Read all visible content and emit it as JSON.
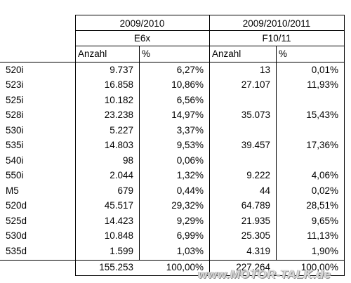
{
  "header": {
    "period_1": "2009/2010",
    "period_2": "2009/2010/2011",
    "model_1": "E6x",
    "model_2": "F10/11"
  },
  "columns": [
    "Anzahl",
    "%",
    "Anzahl",
    "%"
  ],
  "rows": [
    {
      "model": "520i",
      "e6x_count": "9.737",
      "e6x_pct": "6,27%",
      "f10_count": "13",
      "f10_pct": "0,01%"
    },
    {
      "model": "523i",
      "e6x_count": "16.858",
      "e6x_pct": "10,86%",
      "f10_count": "27.107",
      "f10_pct": "11,93%"
    },
    {
      "model": "525i",
      "e6x_count": "10.182",
      "e6x_pct": "6,56%",
      "f10_count": "",
      "f10_pct": ""
    },
    {
      "model": "528i",
      "e6x_count": "23.238",
      "e6x_pct": "14,97%",
      "f10_count": "35.073",
      "f10_pct": "15,43%"
    },
    {
      "model": "530i",
      "e6x_count": "5.227",
      "e6x_pct": "3,37%",
      "f10_count": "",
      "f10_pct": ""
    },
    {
      "model": "535i",
      "e6x_count": "14.803",
      "e6x_pct": "9,53%",
      "f10_count": "39.457",
      "f10_pct": "17,36%"
    },
    {
      "model": "540i",
      "e6x_count": "98",
      "e6x_pct": "0,06%",
      "f10_count": "",
      "f10_pct": ""
    },
    {
      "model": "550i",
      "e6x_count": "2.044",
      "e6x_pct": "1,32%",
      "f10_count": "9.222",
      "f10_pct": "4,06%"
    },
    {
      "model": "M5",
      "e6x_count": "679",
      "e6x_pct": "0,44%",
      "f10_count": "44",
      "f10_pct": "0,02%"
    },
    {
      "model": "520d",
      "e6x_count": "45.517",
      "e6x_pct": "29,32%",
      "f10_count": "64.789",
      "f10_pct": "28,51%"
    },
    {
      "model": "525d",
      "e6x_count": "14.423",
      "e6x_pct": "9,29%",
      "f10_count": "21.935",
      "f10_pct": "9,65%"
    },
    {
      "model": "530d",
      "e6x_count": "10.848",
      "e6x_pct": "6,99%",
      "f10_count": "25.305",
      "f10_pct": "11,13%"
    },
    {
      "model": "535d",
      "e6x_count": "1.599",
      "e6x_pct": "1,03%",
      "f10_count": "4.319",
      "f10_pct": "1,90%"
    }
  ],
  "totals": {
    "e6x_count": "155.253",
    "e6x_pct": "100,00%",
    "f10_count": "227.264",
    "f10_pct": "100,00%"
  },
  "watermark": "www.MOTOR-TALK.de"
}
